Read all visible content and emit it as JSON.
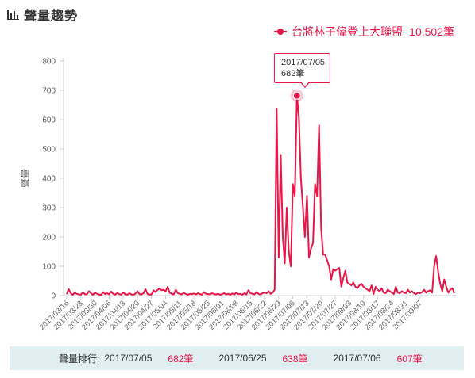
{
  "header": {
    "title": "聲量趨勢",
    "icon": "bar-chart-icon"
  },
  "legend": {
    "label": "台將林子偉登上大聯盟",
    "count": "10,502筆"
  },
  "tooltip": {
    "date": "2017/07/05",
    "value": "682筆"
  },
  "ranking": {
    "label": "聲量排行:",
    "entries": [
      {
        "date": "2017/07/05",
        "count": "682筆"
      },
      {
        "date": "2017/06/25",
        "count": "638筆"
      },
      {
        "date": "2017/07/06",
        "count": "607筆"
      }
    ]
  },
  "colors": {
    "series": "#e8174a",
    "ranking_bg": "#e1eff2",
    "grid": "#e6e6e6"
  },
  "chart_data": {
    "type": "line",
    "title": "聲量趨勢",
    "ylabel": "聲量",
    "xlabel": "",
    "ylim": [
      0,
      800
    ],
    "yticks": [
      0,
      100,
      200,
      300,
      400,
      500,
      600,
      700,
      800
    ],
    "grid": false,
    "legend_position": "top-right",
    "x_start": "2017/03/16",
    "xtick_labels": [
      "2017/03/16",
      "2017/03/23",
      "2017/03/30",
      "2017/04/06",
      "2017/04/13",
      "2017/04/20",
      "2017/04/27",
      "2017/05/04",
      "2017/05/11",
      "2017/05/18",
      "2017/05/25",
      "2017/06/01",
      "2017/06/08",
      "2017/06/15",
      "2017/06/22",
      "2017/06/29",
      "2017/07/06",
      "2017/07/13",
      "2017/07/20",
      "2017/07/27",
      "2017/08/03",
      "2017/08/10",
      "2017/08/17",
      "2017/08/24",
      "2017/08/31",
      "2017/09/07"
    ],
    "highlight": {
      "date": "2017/07/05",
      "value": 682
    },
    "series": [
      {
        "name": "台將林子偉登上大聯盟",
        "values": [
          5,
          22,
          8,
          3,
          10,
          6,
          4,
          3,
          12,
          5,
          4,
          15,
          8,
          3,
          10,
          6,
          4,
          2,
          12,
          5,
          8,
          4,
          14,
          6,
          3,
          9,
          5,
          3,
          11,
          4,
          3,
          8,
          4,
          3,
          6,
          15,
          5,
          4,
          8,
          22,
          6,
          3,
          4,
          18,
          12,
          20,
          24,
          18,
          20,
          14,
          30,
          10,
          6,
          4,
          20,
          8,
          6,
          4,
          10,
          5,
          3,
          6,
          5,
          7,
          4,
          8,
          5,
          3,
          12,
          6,
          5,
          4,
          8,
          5,
          4,
          6,
          3,
          5,
          8,
          4,
          6,
          3,
          7,
          4,
          10,
          5,
          6,
          3,
          8,
          4,
          18,
          8,
          6,
          4,
          12,
          6,
          4,
          8,
          10,
          8,
          15,
          6,
          10,
          20,
          638,
          130,
          480,
          200,
          110,
          300,
          150,
          100,
          380,
          340,
          682,
          607,
          400,
          300,
          200,
          340,
          130,
          160,
          180,
          380,
          340,
          580,
          230,
          140,
          140,
          120,
          100,
          55,
          90,
          85,
          90,
          95,
          30,
          60,
          85,
          45,
          40,
          35,
          45,
          30,
          25,
          35,
          40,
          30,
          25,
          20,
          15,
          35,
          5,
          30,
          20,
          15,
          25,
          10,
          8,
          20,
          15,
          10,
          5,
          30,
          10,
          8,
          15,
          10,
          8,
          20,
          10,
          15,
          8,
          5,
          10,
          8,
          12,
          20,
          10,
          15,
          18,
          10,
          100,
          135,
          80,
          40,
          15,
          55,
          30,
          10,
          20,
          25,
          8
        ]
      }
    ]
  }
}
